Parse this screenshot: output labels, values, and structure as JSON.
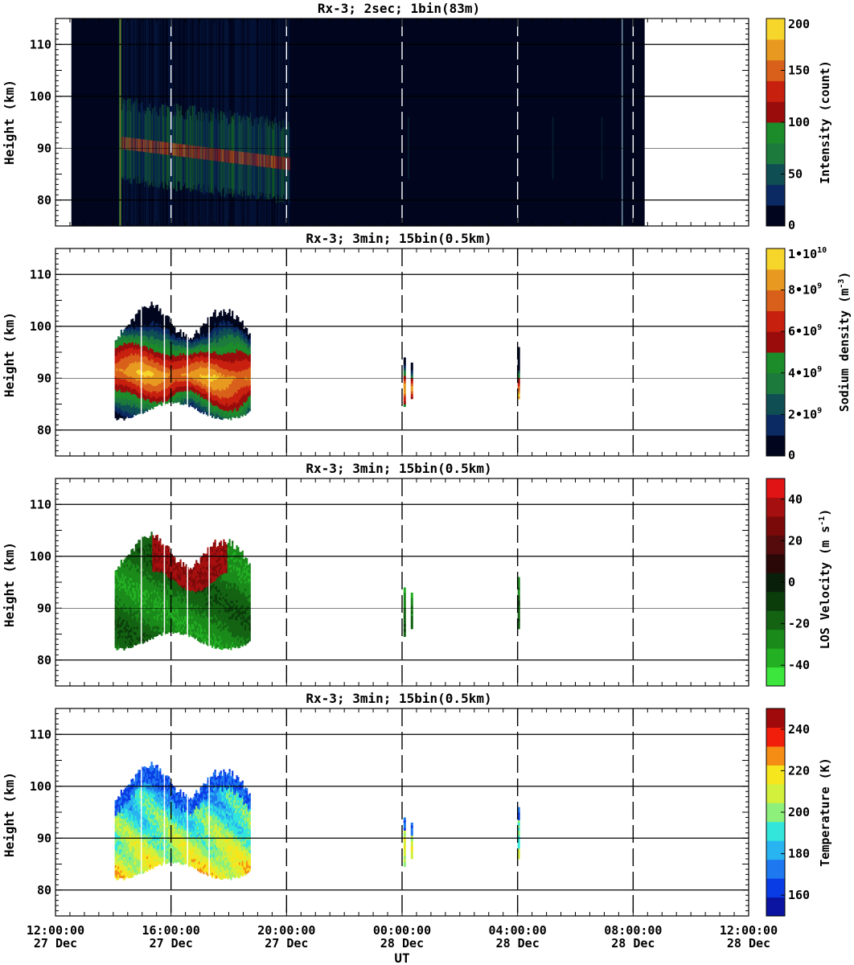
{
  "figure": {
    "x_axis_label": "UT",
    "x_tick_labels": [
      {
        "time": "12:00:00",
        "date": "27 Dec"
      },
      {
        "time": "16:00:00",
        "date": "27 Dec"
      },
      {
        "time": "20:00:00",
        "date": "27 Dec"
      },
      {
        "time": "00:00:00",
        "date": "28 Dec"
      },
      {
        "time": "04:00:00",
        "date": "28 Dec"
      },
      {
        "time": "08:00:00",
        "date": "28 Dec"
      },
      {
        "time": "12:00:00",
        "date": "28 Dec"
      }
    ]
  },
  "chart_data": [
    {
      "type": "heatmap",
      "title": "Rx-3;  2sec; 1bin(83m)",
      "ylabel": "Height (km)",
      "colorbar_label": "Intensity (count)",
      "xlim_hours_from_start": [
        0,
        24
      ],
      "ylim": [
        75,
        115
      ],
      "y_ticks": [
        "80",
        "90",
        "100",
        "110"
      ],
      "colorbar_ticks": [
        "0",
        "50",
        "100",
        "150",
        "200"
      ],
      "colorbar_range": [
        0,
        200
      ],
      "colors": [
        "#01061e",
        "#0b2a63",
        "#0f4f54",
        "#1d7a3d",
        "#1c8b2a",
        "#9a0c0c",
        "#c8200f",
        "#d8601a",
        "#e89a20",
        "#f7d62c"
      ],
      "data_extent_hours": [
        0.55,
        20.4
      ],
      "layer_center_km": [
        [
          2.4,
          90
        ],
        [
          4.0,
          88.5
        ],
        [
          6.4,
          86.5
        ]
      ],
      "note_bright_vertical_hours": [
        2.2,
        19.6
      ]
    },
    {
      "type": "heatmap",
      "title": "Rx-3; 3min; 15bin(0.5km)",
      "ylabel": "Height (km)",
      "colorbar_label": "Sodium density (m-3)",
      "ylim": [
        75,
        115
      ],
      "y_ticks": [
        "80",
        "90",
        "100",
        "110"
      ],
      "colorbar_ticks": [
        {
          "base": "0",
          "exp": ""
        },
        {
          "base": "2•10",
          "exp": "9"
        },
        {
          "base": "4•10",
          "exp": "9"
        },
        {
          "base": "6•10",
          "exp": "9"
        },
        {
          "base": "8•10",
          "exp": "9"
        },
        {
          "base": "1•10",
          "exp": "10"
        }
      ],
      "colorbar_range": [
        0,
        10000000000
      ],
      "colors": [
        "#01061e",
        "#0b2a63",
        "#0f4f54",
        "#1d7a3d",
        "#1c8b2a",
        "#9a0c0c",
        "#c8200f",
        "#d8601a",
        "#e89a20",
        "#f7d62c"
      ],
      "data_extent_hours": [
        2.05,
        6.7
      ],
      "secondary_segments_hours": [
        12.05,
        12.3,
        16.0
      ]
    },
    {
      "type": "heatmap",
      "title": "Rx-3; 3min; 15bin(0.5km)",
      "ylabel": "Height (km)",
      "colorbar_label": "LOS Velocity (m s-1)",
      "ylim": [
        75,
        115
      ],
      "y_ticks": [
        "80",
        "90",
        "100",
        "110"
      ],
      "colorbar_ticks": [
        "-40",
        "-20",
        "0",
        "20",
        "40"
      ],
      "colorbar_range": [
        -50,
        50
      ],
      "colors": [
        "#3ce63c",
        "#23b023",
        "#1a8a1a",
        "#136313",
        "#0b3d0b",
        "#0a1f0a",
        "#2a0808",
        "#550b0b",
        "#7a0a0a",
        "#a50f0f",
        "#e01414"
      ],
      "data_extent_hours": [
        2.05,
        6.7
      ]
    },
    {
      "type": "heatmap",
      "title": "Rx-3; 3min; 15bin(0.5km)",
      "ylabel": "Height (km)",
      "colorbar_label": "Temperature (K)",
      "ylim": [
        75,
        115
      ],
      "y_ticks": [
        "80",
        "90",
        "100",
        "110"
      ],
      "colorbar_ticks": [
        "160",
        "180",
        "200",
        "220",
        "240"
      ],
      "colorbar_range": [
        150,
        250
      ],
      "colors": [
        "#0a14a0",
        "#0a3ce6",
        "#1e78f0",
        "#28b4f0",
        "#32e6dc",
        "#8cf07a",
        "#d2f03c",
        "#f5e61e",
        "#f58c14",
        "#f01e0a",
        "#a00a0a"
      ],
      "data_extent_hours": [
        2.05,
        6.7
      ]
    }
  ]
}
